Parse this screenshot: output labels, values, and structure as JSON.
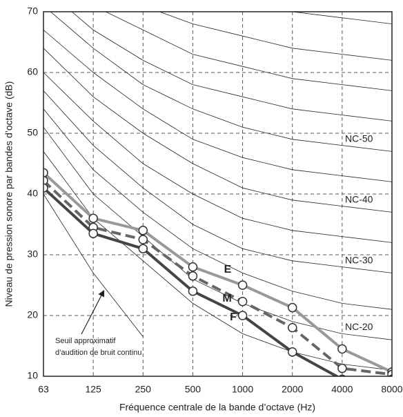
{
  "chart_data": {
    "type": "line",
    "x_label": "Fréquence centrale de la bande d’octave (Hz)",
    "y_label": "Niveau de pression sonore par bandes d’octave (dB)",
    "categories": [
      "63",
      "125",
      "250",
      "500",
      "1000",
      "2000",
      "4000",
      "8000"
    ],
    "ylim": [
      10,
      70
    ],
    "yticks": [
      10,
      20,
      30,
      40,
      50,
      60,
      70
    ],
    "grid": true,
    "series": [
      {
        "name": "E",
        "color": "#999999",
        "dash": false,
        "values": [
          43.5,
          36,
          34,
          28,
          25,
          21.3,
          14.5,
          10.7
        ]
      },
      {
        "name": "M",
        "color": "#666666",
        "dash": true,
        "values": [
          42.2,
          34.5,
          32.5,
          26.5,
          22.3,
          18,
          11.3,
          10.3
        ]
      },
      {
        "name": "F",
        "color": "#454545",
        "dash": false,
        "values": [
          41,
          33.5,
          31,
          24,
          20,
          14,
          9.5,
          9.5
        ]
      }
    ],
    "nc_curves": [
      {
        "values": [
          47,
          36,
          29,
          22,
          17,
          14,
          12,
          11
        ]
      },
      {
        "name": "NC-20",
        "values": [
          51,
          40,
          33,
          26,
          22,
          19,
          17,
          16
        ]
      },
      {
        "values": [
          54,
          44,
          37,
          31,
          27,
          24,
          22,
          21
        ]
      },
      {
        "name": "NC-30",
        "values": [
          57,
          48,
          41,
          35,
          31,
          29,
          28,
          27
        ]
      },
      {
        "values": [
          60,
          52,
          45,
          40,
          36,
          34,
          33,
          32
        ]
      },
      {
        "name": "NC-40",
        "values": [
          64,
          56,
          50,
          45,
          41,
          39,
          38,
          37
        ]
      },
      {
        "values": [
          67,
          60,
          54,
          49,
          46,
          44,
          43,
          42
        ]
      },
      {
        "name": "NC-50",
        "values": [
          71,
          64,
          58,
          54,
          51,
          49,
          48,
          47
        ]
      },
      {
        "values": [
          74,
          67,
          62,
          58,
          56,
          54,
          53,
          52
        ]
      },
      {
        "values": [
          77,
          71,
          67,
          63,
          61,
          59,
          58,
          57
        ]
      },
      {
        "values": [
          80,
          75,
          71,
          68,
          66,
          64,
          63,
          62
        ]
      },
      {
        "values": [
          83,
          79,
          75,
          72,
          71,
          70,
          69,
          68
        ]
      }
    ],
    "threshold": {
      "label_lines": [
        "Seuil approximatif",
        "d’audition de bruit continu"
      ],
      "values": [
        40,
        27,
        16.5,
        null,
        null,
        null,
        null,
        null
      ]
    }
  }
}
